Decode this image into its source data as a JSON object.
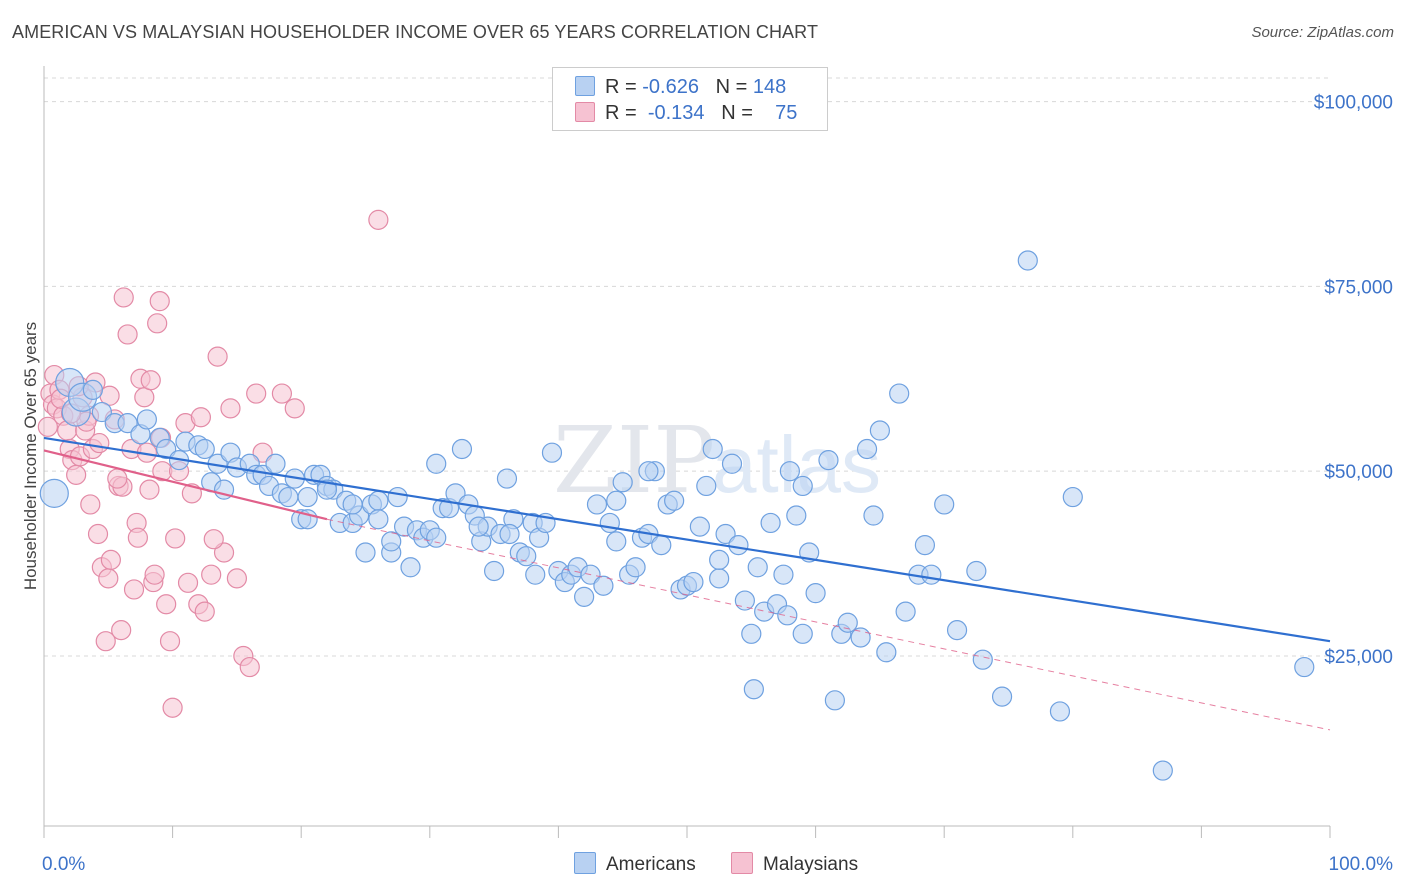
{
  "title": "AMERICAN VS MALAYSIAN HOUSEHOLDER INCOME OVER 65 YEARS CORRELATION CHART",
  "source": "Source: ZipAtlas.com",
  "watermark": {
    "zip": "ZIP",
    "atlas": "atlas"
  },
  "legend": {
    "rows": [
      {
        "r_label": "R =",
        "r_value": "-0.626",
        "n_label": "N =",
        "n_value": "148",
        "color": "#6fa1e0",
        "fill": "#b8d1f2"
      },
      {
        "r_label": "R =",
        "r_value": "-0.134",
        "n_label": "N =",
        "n_value": "75",
        "color": "#e38aa6",
        "fill": "#f6c2d2"
      }
    ]
  },
  "bottom_legend": [
    "Americans",
    "Malaysians"
  ],
  "chart_data": {
    "type": "scatter",
    "title": "AMERICAN VS MALAYSIAN HOUSEHOLDER INCOME OVER 65 YEARS CORRELATION CHART",
    "xlabel": "",
    "ylabel": "Householder Income Over 65 years",
    "xlim": [
      0,
      100
    ],
    "ylim": [
      2000,
      104000
    ],
    "x_tick_labels": [
      "0.0%",
      "100.0%"
    ],
    "y_ticks": [
      25000,
      50000,
      75000,
      100000
    ],
    "y_tick_labels": [
      "$25,000",
      "$50,000",
      "$75,000",
      "$100,000"
    ],
    "grid": true,
    "legend_position": "top-center",
    "series": [
      {
        "name": "Americans",
        "color": "#6fa1e0",
        "fill": "#b8d1f2",
        "trend": {
          "x": [
            0,
            100
          ],
          "y": [
            54500,
            27000
          ],
          "color": "#2f6fd0"
        },
        "points": [
          [
            0.8,
            47000
          ],
          [
            2.0,
            62000
          ],
          [
            2.5,
            58000
          ],
          [
            3.0,
            60000
          ],
          [
            3.8,
            61000
          ],
          [
            4.5,
            58000
          ],
          [
            5.5,
            56500
          ],
          [
            6.5,
            56500
          ],
          [
            7.5,
            55000
          ],
          [
            8.0,
            57000
          ],
          [
            9.0,
            54500
          ],
          [
            9.5,
            53000
          ],
          [
            10.5,
            51500
          ],
          [
            11.0,
            54000
          ],
          [
            12.0,
            53500
          ],
          [
            12.5,
            53000
          ],
          [
            13.0,
            48500
          ],
          [
            13.5,
            51000
          ],
          [
            14.0,
            47500
          ],
          [
            14.5,
            52500
          ],
          [
            15.0,
            50500
          ],
          [
            16.0,
            51000
          ],
          [
            16.5,
            49500
          ],
          [
            17.0,
            49500
          ],
          [
            17.5,
            48000
          ],
          [
            18.0,
            51000
          ],
          [
            18.5,
            47000
          ],
          [
            19.0,
            46500
          ],
          [
            19.5,
            49000
          ],
          [
            20.0,
            43500
          ],
          [
            20.5,
            46500
          ],
          [
            21.0,
            49500
          ],
          [
            21.5,
            49500
          ],
          [
            22.0,
            48000
          ],
          [
            22.5,
            47500
          ],
          [
            23.0,
            43000
          ],
          [
            23.5,
            46000
          ],
          [
            24.0,
            43000
          ],
          [
            24.5,
            44000
          ],
          [
            25.0,
            39000
          ],
          [
            25.5,
            45500
          ],
          [
            26.0,
            46000
          ],
          [
            27.0,
            39000
          ],
          [
            27.5,
            46500
          ],
          [
            28.0,
            42500
          ],
          [
            28.5,
            37000
          ],
          [
            29.0,
            42000
          ],
          [
            29.5,
            41000
          ],
          [
            30.0,
            42000
          ],
          [
            30.5,
            41000
          ],
          [
            31.0,
            45000
          ],
          [
            31.5,
            45000
          ],
          [
            32.0,
            47000
          ],
          [
            32.5,
            53000
          ],
          [
            33.0,
            45500
          ],
          [
            33.5,
            44000
          ],
          [
            34.0,
            40500
          ],
          [
            34.5,
            42500
          ],
          [
            35.0,
            36500
          ],
          [
            35.5,
            41500
          ],
          [
            36.0,
            49000
          ],
          [
            36.5,
            43500
          ],
          [
            37.0,
            39000
          ],
          [
            37.5,
            38500
          ],
          [
            38.0,
            43000
          ],
          [
            38.5,
            41000
          ],
          [
            39.0,
            43000
          ],
          [
            39.5,
            52500
          ],
          [
            40.0,
            36500
          ],
          [
            40.5,
            35000
          ],
          [
            41.0,
            36000
          ],
          [
            41.5,
            37000
          ],
          [
            42.0,
            33000
          ],
          [
            42.5,
            36000
          ],
          [
            43.0,
            45500
          ],
          [
            43.5,
            34500
          ],
          [
            44.0,
            43000
          ],
          [
            44.5,
            40500
          ],
          [
            45.0,
            48500
          ],
          [
            45.5,
            36000
          ],
          [
            46.0,
            37000
          ],
          [
            46.5,
            41000
          ],
          [
            47.0,
            41500
          ],
          [
            47.5,
            50000
          ],
          [
            48.0,
            40000
          ],
          [
            48.5,
            45500
          ],
          [
            49.0,
            46000
          ],
          [
            49.5,
            34000
          ],
          [
            50.0,
            34500
          ],
          [
            50.5,
            35000
          ],
          [
            51.0,
            42500
          ],
          [
            51.5,
            48000
          ],
          [
            52.0,
            53000
          ],
          [
            52.5,
            35500
          ],
          [
            53.0,
            41500
          ],
          [
            53.5,
            51000
          ],
          [
            54.0,
            40000
          ],
          [
            54.5,
            32500
          ],
          [
            55.0,
            28000
          ],
          [
            55.5,
            37000
          ],
          [
            56.0,
            31000
          ],
          [
            56.5,
            43000
          ],
          [
            57.0,
            32000
          ],
          [
            57.5,
            36000
          ],
          [
            58.0,
            50000
          ],
          [
            58.5,
            44000
          ],
          [
            59.0,
            48000
          ],
          [
            59.5,
            39000
          ],
          [
            60.0,
            33500
          ],
          [
            61.0,
            51500
          ],
          [
            61.5,
            19000
          ],
          [
            62.0,
            28000
          ],
          [
            62.5,
            29500
          ],
          [
            63.5,
            27500
          ],
          [
            64.0,
            53000
          ],
          [
            64.5,
            44000
          ],
          [
            65.0,
            55500
          ],
          [
            65.5,
            25500
          ],
          [
            66.5,
            60500
          ],
          [
            67.0,
            31000
          ],
          [
            68.0,
            36000
          ],
          [
            68.5,
            40000
          ],
          [
            69.0,
            36000
          ],
          [
            70.0,
            45500
          ],
          [
            71.0,
            28500
          ],
          [
            72.5,
            36500
          ],
          [
            73.0,
            24500
          ],
          [
            74.5,
            19500
          ],
          [
            76.5,
            78500
          ],
          [
            79.0,
            17500
          ],
          [
            80.0,
            46500
          ],
          [
            87.0,
            9500
          ],
          [
            98.0,
            23500
          ],
          [
            55.2,
            20500
          ],
          [
            57.8,
            30500
          ],
          [
            59.0,
            28000
          ],
          [
            47.0,
            50000
          ],
          [
            44.5,
            46000
          ],
          [
            52.5,
            38000
          ],
          [
            38.2,
            36000
          ],
          [
            27.0,
            40500
          ],
          [
            26.0,
            43500
          ],
          [
            24.0,
            45500
          ],
          [
            22.0,
            47500
          ],
          [
            20.5,
            43500
          ],
          [
            30.5,
            51000
          ],
          [
            33.8,
            42500
          ],
          [
            36.2,
            41500
          ]
        ]
      },
      {
        "name": "Malaysians",
        "color": "#e38aa6",
        "fill": "#f6c2d2",
        "trend": {
          "x": [
            0,
            22
          ],
          "y": [
            52800,
            43500
          ],
          "color": "#e0608a",
          "dash_to": [
            100,
            15000
          ]
        },
        "points": [
          [
            0.3,
            56000
          ],
          [
            0.5,
            60500
          ],
          [
            0.7,
            59000
          ],
          [
            0.8,
            63000
          ],
          [
            1.0,
            58500
          ],
          [
            1.2,
            61000
          ],
          [
            1.5,
            57500
          ],
          [
            1.8,
            55500
          ],
          [
            2.0,
            53000
          ],
          [
            2.2,
            51500
          ],
          [
            2.5,
            49500
          ],
          [
            2.8,
            52000
          ],
          [
            3.0,
            60000
          ],
          [
            3.2,
            55500
          ],
          [
            3.5,
            57500
          ],
          [
            3.8,
            53000
          ],
          [
            4.0,
            62000
          ],
          [
            4.2,
            41500
          ],
          [
            4.5,
            37000
          ],
          [
            4.8,
            27000
          ],
          [
            5.0,
            35500
          ],
          [
            5.2,
            38000
          ],
          [
            5.5,
            57000
          ],
          [
            5.8,
            48000
          ],
          [
            6.0,
            28500
          ],
          [
            6.2,
            73500
          ],
          [
            6.5,
            68500
          ],
          [
            6.8,
            53000
          ],
          [
            7.0,
            34000
          ],
          [
            7.2,
            43000
          ],
          [
            7.5,
            62500
          ],
          [
            7.8,
            60000
          ],
          [
            8.0,
            52500
          ],
          [
            8.2,
            47500
          ],
          [
            8.5,
            35000
          ],
          [
            8.8,
            70000
          ],
          [
            9.0,
            73000
          ],
          [
            9.2,
            50000
          ],
          [
            9.5,
            32000
          ],
          [
            9.8,
            27000
          ],
          [
            10.0,
            18000
          ],
          [
            10.5,
            50000
          ],
          [
            11.0,
            56500
          ],
          [
            11.5,
            47000
          ],
          [
            12.0,
            32000
          ],
          [
            12.5,
            31000
          ],
          [
            13.0,
            36000
          ],
          [
            13.5,
            65500
          ],
          [
            14.0,
            39000
          ],
          [
            14.5,
            58500
          ],
          [
            15.0,
            35500
          ],
          [
            15.5,
            25000
          ],
          [
            16.0,
            23500
          ],
          [
            16.5,
            60500
          ],
          [
            17.0,
            52500
          ],
          [
            18.5,
            60500
          ],
          [
            19.5,
            58500
          ],
          [
            26.0,
            84000
          ],
          [
            1.3,
            59800
          ],
          [
            2.7,
            61500
          ],
          [
            3.3,
            56700
          ],
          [
            4.3,
            53800
          ],
          [
            5.1,
            60200
          ],
          [
            6.1,
            47900
          ],
          [
            7.3,
            41000
          ],
          [
            8.3,
            62300
          ],
          [
            9.1,
            54500
          ],
          [
            10.2,
            40900
          ],
          [
            11.2,
            34900
          ],
          [
            12.2,
            57300
          ],
          [
            13.2,
            40800
          ],
          [
            3.6,
            45500
          ],
          [
            5.7,
            49000
          ],
          [
            8.6,
            36000
          ],
          [
            2.1,
            57800
          ]
        ]
      }
    ]
  }
}
